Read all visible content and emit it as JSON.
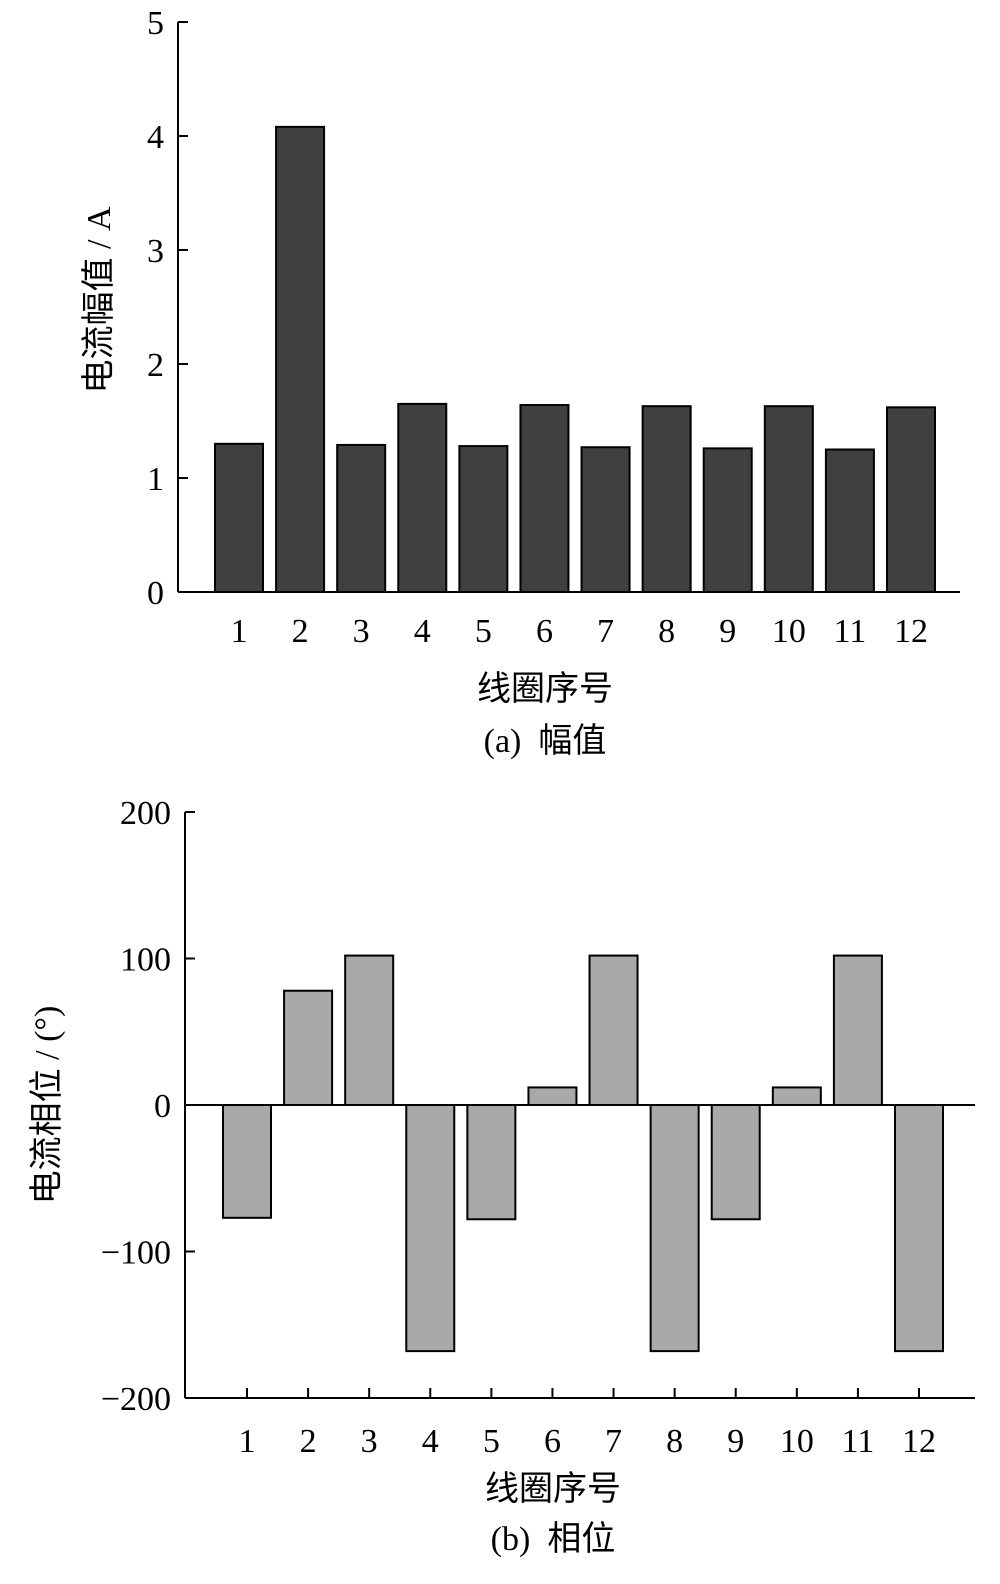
{
  "chart_data": [
    {
      "type": "bar",
      "caption": "(a)  幅值",
      "xlabel": "线圈序号",
      "ylabel": "电流幅值 / A",
      "categories": [
        "1",
        "2",
        "3",
        "4",
        "5",
        "6",
        "7",
        "8",
        "9",
        "10",
        "11",
        "12"
      ],
      "values": [
        1.3,
        4.08,
        1.29,
        1.65,
        1.28,
        1.64,
        1.27,
        1.63,
        1.26,
        1.63,
        1.25,
        1.62
      ],
      "ylim": [
        0,
        5
      ],
      "yticks": [
        "0",
        "1",
        "2",
        "3",
        "4",
        "5"
      ],
      "bar_color": "#404040",
      "grid": false
    },
    {
      "type": "bar",
      "caption": "(b)  相位",
      "xlabel": "线圈序号",
      "ylabel": "电流相位 / (°)",
      "categories": [
        "1",
        "2",
        "3",
        "4",
        "5",
        "6",
        "7",
        "8",
        "9",
        "10",
        "11",
        "12"
      ],
      "values": [
        -77,
        78,
        102,
        -168,
        -78,
        12,
        102,
        -168,
        -78,
        12,
        102,
        -168
      ],
      "ylim": [
        -200,
        200
      ],
      "yticks": [
        "−200",
        "−100",
        "0",
        "100",
        "200"
      ],
      "bar_color": "#a9a9a9",
      "grid": false
    }
  ]
}
